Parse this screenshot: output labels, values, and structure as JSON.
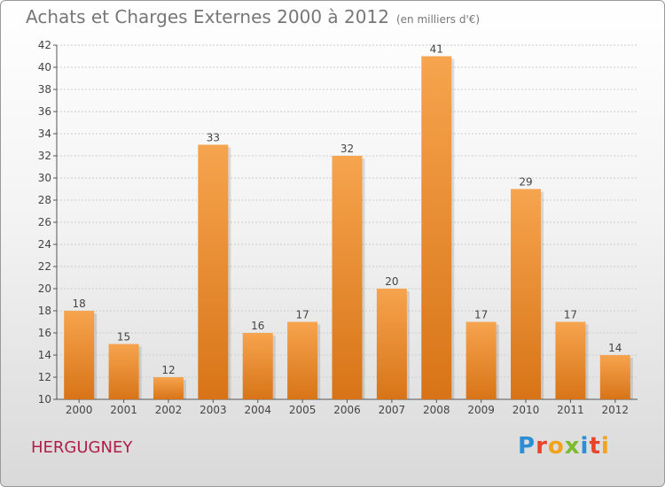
{
  "title": "Achats et Charges Externes 2000 à 2012",
  "subtitle": "(en milliers d'€)",
  "place": "HERGUGNEY",
  "logo": "Proxiti",
  "colors": {
    "bar_light": "#f6a44e",
    "bar_dark": "#d87417",
    "grid": "#cccccc",
    "place": "#b01e4a"
  },
  "chart_data": {
    "type": "bar",
    "categories": [
      "2000",
      "2001",
      "2002",
      "2003",
      "2004",
      "2005",
      "2006",
      "2007",
      "2008",
      "2009",
      "2010",
      "2011",
      "2012"
    ],
    "values": [
      18,
      15,
      12,
      33,
      16,
      17,
      32,
      20,
      41,
      17,
      29,
      17,
      14
    ],
    "ylim": [
      10,
      42
    ],
    "yticks": [
      10,
      12,
      14,
      16,
      18,
      20,
      22,
      24,
      26,
      28,
      30,
      32,
      34,
      36,
      38,
      40,
      42
    ],
    "grid": true
  }
}
